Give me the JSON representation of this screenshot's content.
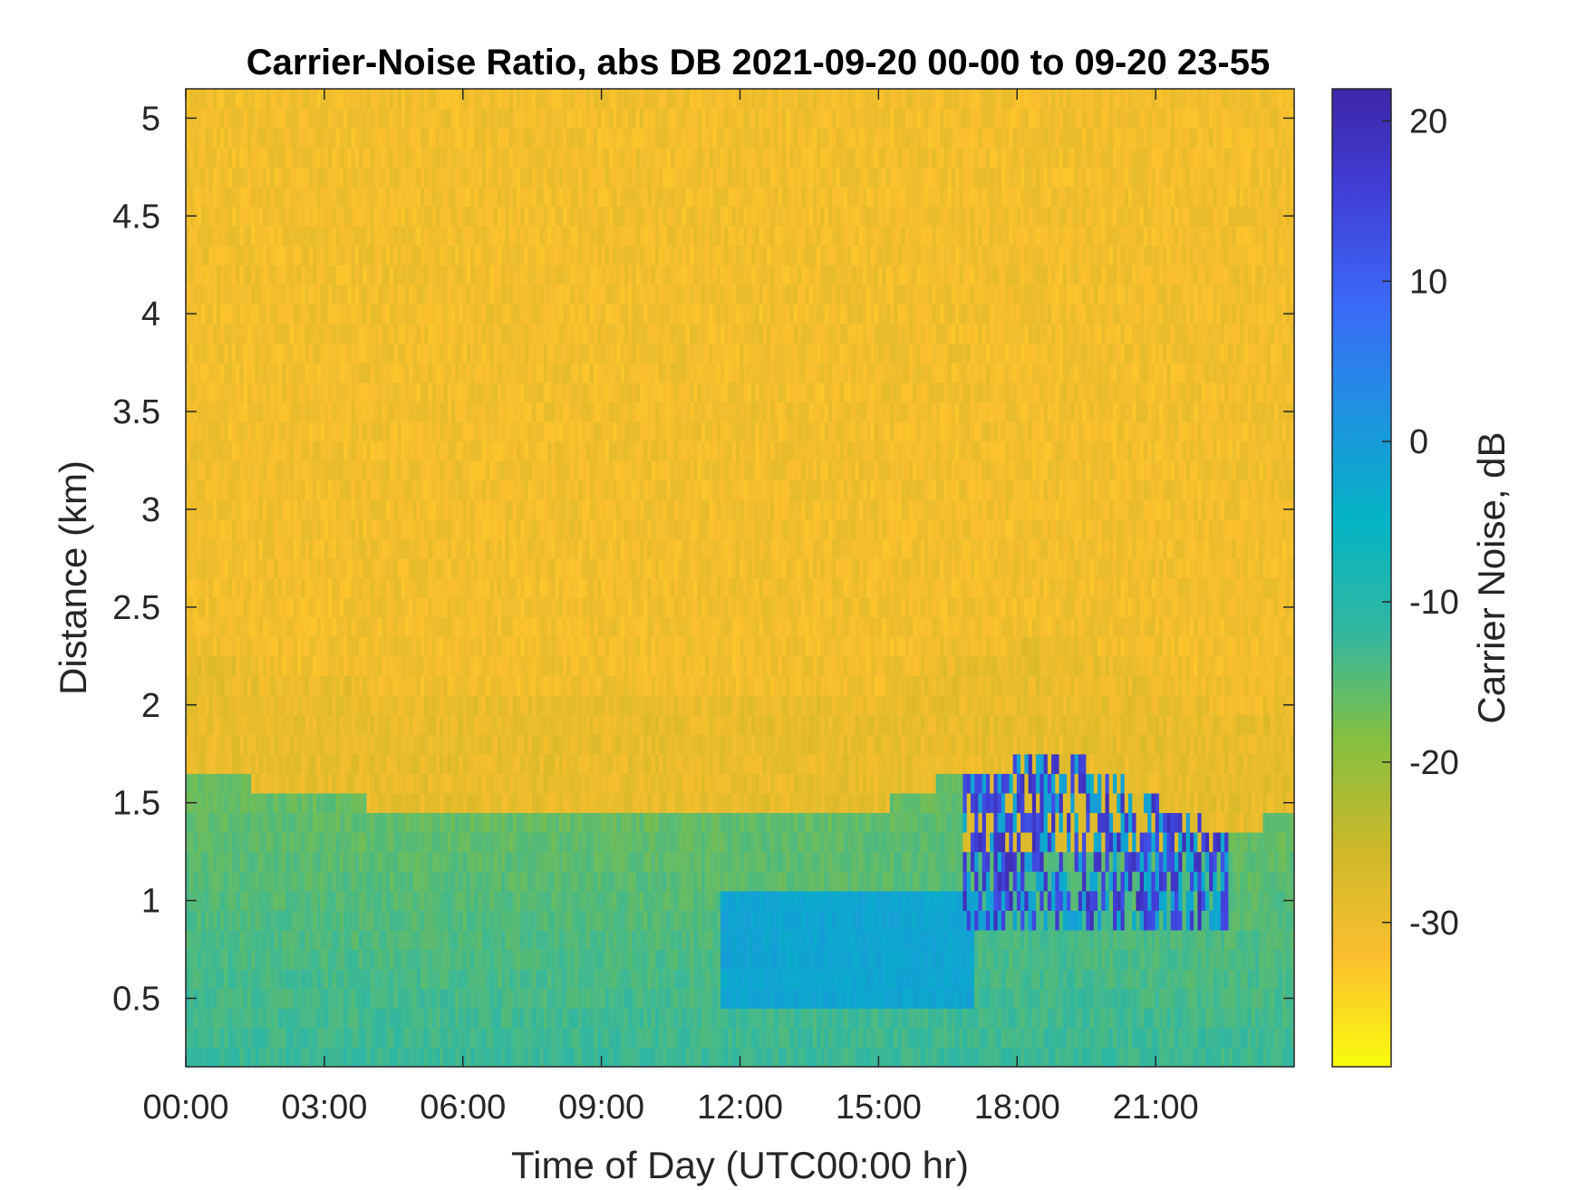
{
  "chart_data": {
    "type": "heatmap",
    "title": "Carrier-Noise Ratio, abs DB 2021-09-20 00-00 to 09-20 23-55",
    "xlabel": "Time of Day (UTC00:00 hr)",
    "ylabel": "Distance (km)",
    "colorbar_label": "Carrier Noise, dB",
    "x_ticks": [
      "00:00",
      "03:00",
      "06:00",
      "09:00",
      "12:00",
      "15:00",
      "18:00",
      "21:00"
    ],
    "x_tick_hours": [
      0,
      3,
      6,
      9,
      12,
      15,
      18,
      21
    ],
    "xlim_hours": [
      0,
      24
    ],
    "y_ticks": [
      "0.5",
      "1",
      "1.5",
      "2",
      "2.5",
      "3",
      "3.5",
      "4",
      "4.5",
      "5"
    ],
    "y_tick_values": [
      0.5,
      1,
      1.5,
      2,
      2.5,
      3,
      3.5,
      4,
      4.5,
      5
    ],
    "ylim_km": [
      0.15,
      5.15
    ],
    "colorbar_ticks": [
      "20",
      "10",
      "0",
      "-10",
      "-20",
      "-30"
    ],
    "colorbar_tick_values": [
      20,
      10,
      0,
      -10,
      -20,
      -30
    ],
    "clim_db": [
      -39,
      22
    ],
    "colormap": "parula (reversed)",
    "colormap_colors": [
      "#f9fb0e",
      "#fbbf2e",
      "#cdb82a",
      "#86bf3f",
      "#33b7a0",
      "#05b4c4",
      "#1e93e0",
      "#3b6af7",
      "#4040d8",
      "#3e26a8"
    ],
    "time_resolution_hours": 0.0833,
    "range_resolution_km": 0.1,
    "grid": false,
    "boundary_layer_top_km": [
      {
        "hour": 0,
        "km": 1.65
      },
      {
        "hour": 2.7,
        "km": 1.55
      },
      {
        "hour": 5.0,
        "km": 1.45
      },
      {
        "hour": 14.7,
        "km": 1.45
      },
      {
        "hour": 16.7,
        "km": 1.65
      },
      {
        "hour": 19.0,
        "km": 1.75
      },
      {
        "hour": 21.5,
        "km": 1.45
      },
      {
        "hour": 22.5,
        "km": 1.35
      },
      {
        "hour": 24.0,
        "km": 1.45
      }
    ],
    "regions": [
      {
        "description": "free troposphere noise floor",
        "x_hours": [
          0,
          24
        ],
        "y_km": [
          1.6,
          5.15
        ],
        "value_db": -31
      },
      {
        "description": "boundary layer aerosol return",
        "x_hours": [
          0,
          24
        ],
        "y_km": [
          0.15,
          1.5
        ],
        "value_db": -12
      },
      {
        "description": "enhanced return",
        "x_hours": [
          11.5,
          17
        ],
        "y_km": [
          0.5,
          1.0
        ],
        "value_db": -2
      },
      {
        "description": "cloud base returns",
        "x_hours": [
          16.8,
          22.5
        ],
        "y_km": [
          0.9,
          1.7
        ],
        "value_db": 20
      }
    ]
  }
}
